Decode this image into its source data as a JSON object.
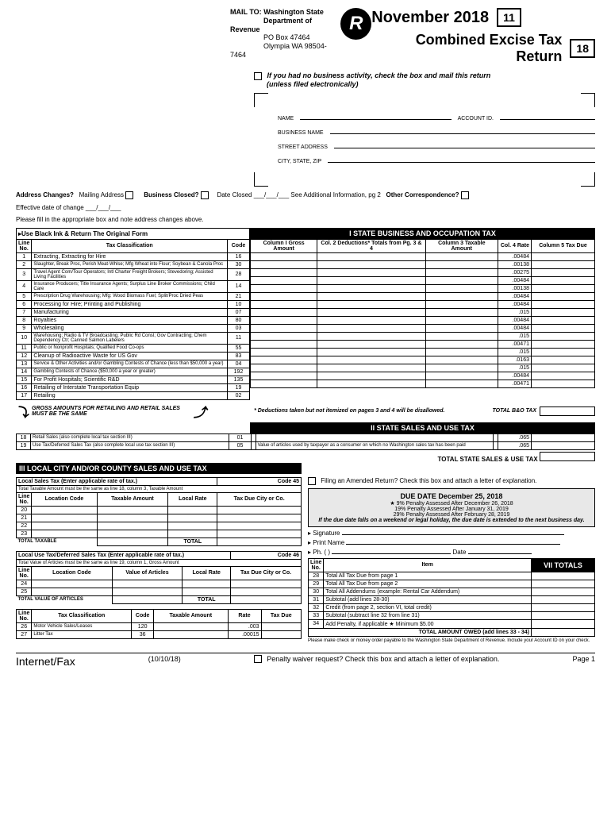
{
  "mail": {
    "to": "MAIL TO:",
    "dept1": "Washington State",
    "dept2": "Department of Revenue",
    "po": "PO Box 47464",
    "city": "Olympia WA 98504-7464"
  },
  "title": {
    "month": "November 2018",
    "sub": "Combined Excise Tax Return",
    "code1": "11",
    "code2": "18"
  },
  "noact": "If you had no business activity, check the box and mail this return",
  "noact2": "(unless filed electronically)",
  "addr": {
    "name": "NAME",
    "acct": "ACCOUNT ID.",
    "bus": "BUSINESS NAME",
    "st": "STREET ADDRESS",
    "csz": "CITY, STATE, ZIP"
  },
  "changes": {
    "ac": "Address Changes?",
    "ma": "Mailing Address",
    "bc": "Business Closed?",
    "dc": "Date Closed ___/___/___  See Additional Information, pg 2",
    "oc": "Other Correspondence?",
    "eff": "Effective date of change ___/___/___",
    "fill": "Please fill in the appropriate box and note address changes above."
  },
  "sec1": {
    "hdr": "I  STATE BUSINESS AND OCCUPATION TAX",
    "left": "▸Use Black Ink & Return The Original Form",
    "cols": [
      "Line No.",
      "Tax Classification",
      "Code",
      "Column I Gross Amount",
      "Col. 2 Deductions* Totals from Pg. 3 & 4",
      "Column 3 Taxable Amount",
      "Col. 4 Rate",
      "Column 5 Tax Due"
    ],
    "rows": [
      {
        "n": "1",
        "d": "Extracting, Extracting for Hire",
        "c": "16",
        "r": ".00484"
      },
      {
        "n": "2",
        "d": "Slaughter, Break Proc, Perish Meat-Whlse; Mfg Wheat into Flour; Soybean & Canola Proc",
        "c": "30",
        "r": ".00138"
      },
      {
        "n": "3",
        "d": "Travel Agent Com/Tour Operators; Intl Charter Freight Brokers; Stevedoring; Assisted Living Facilities",
        "c": "28",
        "r": ".00275"
      },
      {
        "n": "4",
        "d": "Insurance Producers; Title Insurance Agents; Surplus Line Broker Commissions; Child Care",
        "c": "14",
        "r": ".00484"
      },
      {
        "n": "5",
        "d": "Prescription Drug Warehousing; Mfg: Wood Biomass Fuel; Split/Proc Dried Peas",
        "c": "21",
        "r": ".00138"
      },
      {
        "n": "6",
        "d": "Processing for Hire; Printing and Publishing",
        "c": "10",
        "r": ".00484"
      },
      {
        "n": "7",
        "d": "Manufacturing",
        "c": "07",
        "r": ".00484"
      },
      {
        "n": "8",
        "d": "Royalties",
        "c": "80",
        "r": ".015"
      },
      {
        "n": "9",
        "d": "Wholesaling",
        "c": "03",
        "r": ".00484"
      },
      {
        "n": "10",
        "d": "Warehousing; Radio & TV Broadcasting; Public Rd Const; Gov Contracting; Chem Dependency Ctr; Canned Salmon Labelers",
        "c": "11",
        "r": ".00484"
      },
      {
        "n": "11",
        "d": "Public or Nonprofit Hospitals; Qualified Food Co-ops",
        "c": "55",
        "r": ".015"
      },
      {
        "n": "12",
        "d": "Cleanup of Radioactive Waste for US Gov",
        "c": "83",
        "r": ".00471"
      },
      {
        "n": "13",
        "d": "Service & Other Activities and/or Gambling Contests of Chance (less than $50,000 a year)",
        "c": "04",
        "r": ".015"
      },
      {
        "n": "14",
        "d": "Gambling Contests of Chance ($50,000 a year or greater)",
        "c": "192",
        "r": ".0163"
      },
      {
        "n": "15",
        "d": "For Profit Hospitals; Scientific R&D",
        "c": "135",
        "r": ".015"
      },
      {
        "n": "16",
        "d": "Retailing of Interstate Transportation Equip",
        "c": "19",
        "r": ".00484"
      },
      {
        "n": "17",
        "d": "Retailing",
        "c": "02",
        "r": ".00471"
      }
    ],
    "note1": "GROSS AMOUNTS FOR RETAILING AND RETAIL SALES MUST BE THE SAME",
    "note2": "* Deductions taken but not itemized on pages 3 and 4 will be disallowed.",
    "tot": "TOTAL B&O TAX"
  },
  "sec2": {
    "hdr": "II  STATE SALES AND USE TAX",
    "rows": [
      {
        "n": "18",
        "d": "Retail Sales (also complete local tax section III)",
        "c": "01",
        "r": ".065",
        "note": ""
      },
      {
        "n": "19",
        "d": "Use Tax/Deferred Sales Tax (also complete local use tax section III)",
        "c": "05",
        "r": ".065",
        "note": "Value of articles used by taxpayer as a consumer on which no Washington sales tax has been paid"
      }
    ],
    "tot": "TOTAL STATE SALES & USE TAX"
  },
  "sec3": {
    "hdr": "III  LOCAL CITY AND/OR COUNTY SALES AND USE TAX",
    "t1": {
      "title": "Local Sales Tax (Enter applicable rate of tax.)",
      "code": "Code 45",
      "sub": "Total Taxable Amount must be the same as line 18, column 3, Taxable Amount",
      "cols": [
        "Line No.",
        "Location Code",
        "Taxable Amount",
        "Local Rate",
        "Tax Due City or Co."
      ],
      "rows": [
        "20",
        "21",
        "22",
        "23"
      ],
      "tot": "TOTAL TAXABLE",
      "tot2": "TOTAL"
    },
    "t2": {
      "title": "Local Use Tax/Deferred Sales Tax (Enter applicable rate of tax.)",
      "code": "Code 46",
      "sub": "Total Value of Articles must be the same as line 19, column 1, Gross Amount",
      "cols": [
        "Line No.",
        "Location Code",
        "Value of Articles",
        "Local Rate",
        "Tax Due City or Co."
      ],
      "rows": [
        "24",
        "25"
      ],
      "tot": "TOTAL VALUE OF ARTICLES",
      "tot2": "TOTAL"
    },
    "t3": {
      "cols": [
        "Line No.",
        "Tax Classification",
        "Code",
        "Taxable Amount",
        "Rate",
        "Tax Due"
      ],
      "rows": [
        {
          "n": "26",
          "d": "Motor Vehicle Sales/Leases",
          "c": "120",
          "r": ".003"
        },
        {
          "n": "27",
          "d": "Litter Tax",
          "c": "36",
          "r": ".00015"
        }
      ]
    }
  },
  "amend": "Filing an Amended Return? Check this box and attach a letter of explanation.",
  "due": {
    "hdr": "DUE DATE December 25, 2018",
    "p1": "★ 9% Penalty Assessed After December 26, 2018",
    "p2": "19% Penalty Assessed After January 31, 2019",
    "p3": "29% Penalty Assessed After February 28, 2019",
    "note": "If the due date falls on a weekend or legal holiday, the due date is extended to the next business day."
  },
  "sig": {
    "s": "▸ Signature",
    "pn": "▸ Print Name",
    "ph": "▸ Ph. (         )",
    "dt": "Date"
  },
  "sec7": {
    "hdr": "VII  TOTALS",
    "cols": [
      "Line No.",
      "Item"
    ],
    "rows": [
      {
        "n": "28",
        "d": "Total All Tax Due from page 1"
      },
      {
        "n": "29",
        "d": "Total All Tax Due from page 2"
      },
      {
        "n": "30",
        "d": "Total All Addendums (example: Rental Car Addendum)"
      },
      {
        "n": "31",
        "d": "Subtotal (add lines 28-30)"
      },
      {
        "n": "32",
        "d": "Credit (from page 2, section VI, total credit)"
      },
      {
        "n": "33",
        "d": "Subtotal (subtract line 32 from line 31)"
      },
      {
        "n": "34",
        "d": "Add Penalty, if applicable ★          Minimum $5.00"
      }
    ],
    "tot": "TOTAL AMOUNT OWED (add lines 33 - 34)",
    "foot": "Please make check or money order payable to the Washington State Department of Revenue. Include your Account ID on your check."
  },
  "footer": {
    "l": "Internet/Fax",
    "c": "(10/10/18)",
    "m": "Penalty waiver request? Check this box and attach a letter of explanation.",
    "r": "Page 1"
  }
}
